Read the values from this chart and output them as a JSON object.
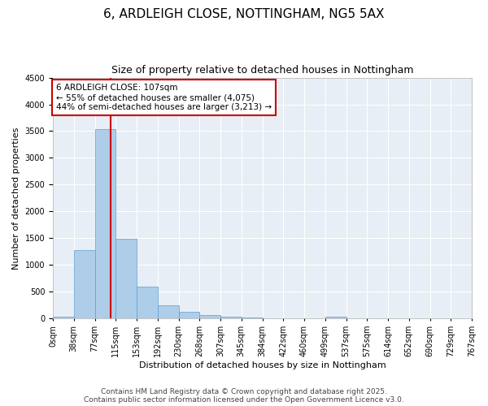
{
  "title_line1": "6, ARDLEIGH CLOSE, NOTTINGHAM, NG5 5AX",
  "title_line2": "Size of property relative to detached houses in Nottingham",
  "xlabel": "Distribution of detached houses by size in Nottingham",
  "ylabel": "Number of detached properties",
  "bar_values": [
    30,
    1280,
    3540,
    1490,
    590,
    250,
    120,
    70,
    40,
    20,
    10,
    0,
    0,
    40,
    0,
    0,
    0,
    0,
    0,
    0
  ],
  "bin_labels": [
    "0sqm",
    "38sqm",
    "77sqm",
    "115sqm",
    "153sqm",
    "192sqm",
    "230sqm",
    "268sqm",
    "307sqm",
    "345sqm",
    "384sqm",
    "422sqm",
    "460sqm",
    "499sqm",
    "537sqm",
    "575sqm",
    "614sqm",
    "652sqm",
    "690sqm",
    "729sqm",
    "767sqm"
  ],
  "bar_color": "#aecde8",
  "bar_edge_color": "#5a9fd4",
  "vline_x": 2.75,
  "vline_color": "#cc0000",
  "annotation_text": "6 ARDLEIGH CLOSE: 107sqm\n← 55% of detached houses are smaller (4,075)\n44% of semi-detached houses are larger (3,213) →",
  "annotation_box_color": "#cc0000",
  "ylim": [
    0,
    4500
  ],
  "yticks": [
    0,
    500,
    1000,
    1500,
    2000,
    2500,
    3000,
    3500,
    4000,
    4500
  ],
  "background_color": "#e8eef5",
  "footer_line1": "Contains HM Land Registry data © Crown copyright and database right 2025.",
  "footer_line2": "Contains public sector information licensed under the Open Government Licence v3.0.",
  "title_fontsize": 11,
  "subtitle_fontsize": 9,
  "axis_label_fontsize": 8,
  "tick_fontsize": 7,
  "annotation_fontsize": 7.5,
  "footer_fontsize": 6.5
}
